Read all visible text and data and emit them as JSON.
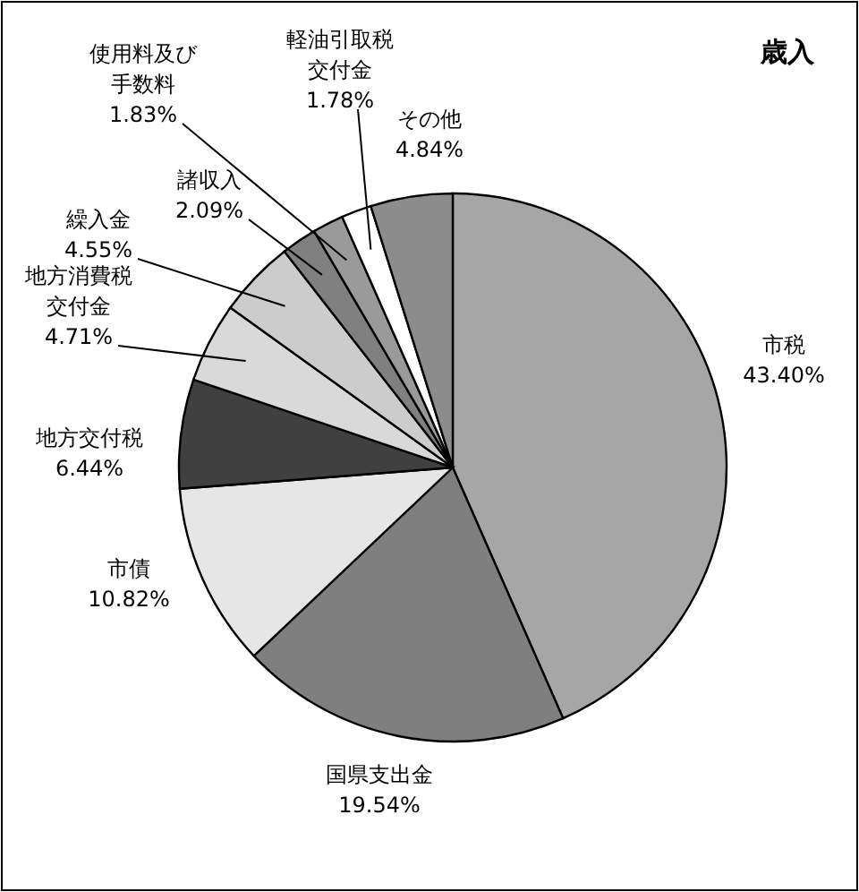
{
  "chart_data": {
    "type": "pie",
    "title": "歳入",
    "categories": [
      "市税",
      "国県支出金",
      "市債",
      "地方交付税",
      "地方消費税交付金",
      "繰入金",
      "諸収入",
      "使用料及び手数料",
      "軽油引取税交付金",
      "その他"
    ],
    "values": [
      43.4,
      19.54,
      10.82,
      6.44,
      4.71,
      4.55,
      2.09,
      1.83,
      1.78,
      4.84
    ],
    "colors": [
      "#a6a6a6",
      "#7f7f7f",
      "#e6e6e6",
      "#404040",
      "#d9d9d9",
      "#cccccc",
      "#808080",
      "#9a9a9a",
      "#ffffff",
      "#8c8c8c"
    ],
    "value_labels": [
      "43.40%",
      "19.54%",
      "10.82%",
      "6.44%",
      "4.71%",
      "4.55%",
      "2.09%",
      "1.83%",
      "1.78%",
      "4.84%"
    ]
  }
}
